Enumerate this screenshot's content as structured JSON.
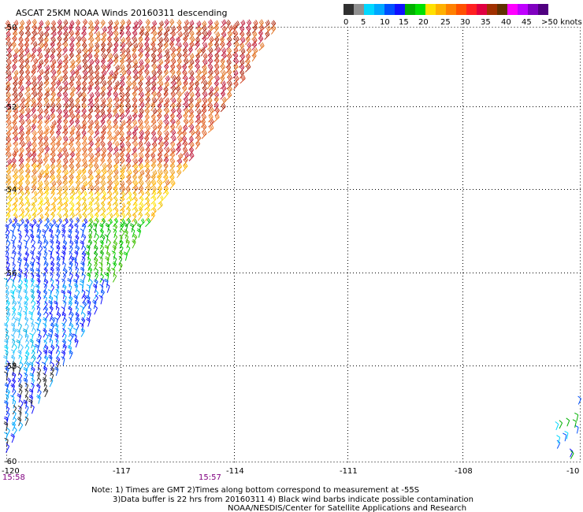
{
  "header": {
    "title": "ASCAT 25KM NOAA Winds 20160311 descending"
  },
  "legend": {
    "ticks": [
      "0",
      "5",
      "10",
      "15",
      "20",
      "25",
      "30",
      "35",
      "40",
      "45",
      ">50 knots"
    ],
    "colors": [
      "#303030",
      "#909090",
      "#00d8ff",
      "#00a8ff",
      "#0050ff",
      "#1010ff",
      "#00b000",
      "#00e000",
      "#ffe000",
      "#ffb000",
      "#ff8000",
      "#ff5000",
      "#ff2020",
      "#e00040",
      "#a03000",
      "#603000",
      "#ff00ff",
      "#c000ff",
      "#8000c0",
      "#500080"
    ]
  },
  "map": {
    "lat_labels": [
      "-50",
      "-52",
      "-54",
      "-56",
      "-58",
      "-60"
    ],
    "lon_labels": [
      "-120",
      "-117",
      "-114",
      "-111",
      "-108",
      "-10"
    ],
    "time_labels": [
      "15:58",
      "15:57"
    ]
  },
  "notes": {
    "line1": "Note: 1) Times are GMT 2)Times along bottom correspond to measurement at -55S",
    "line2": "3)Data buffer is 22 hrs from 20160311 4) Black wind barbs indicate possible contamination",
    "line3": "NOAA/NESDIS/Center for Satellite Applications and Research"
  }
}
